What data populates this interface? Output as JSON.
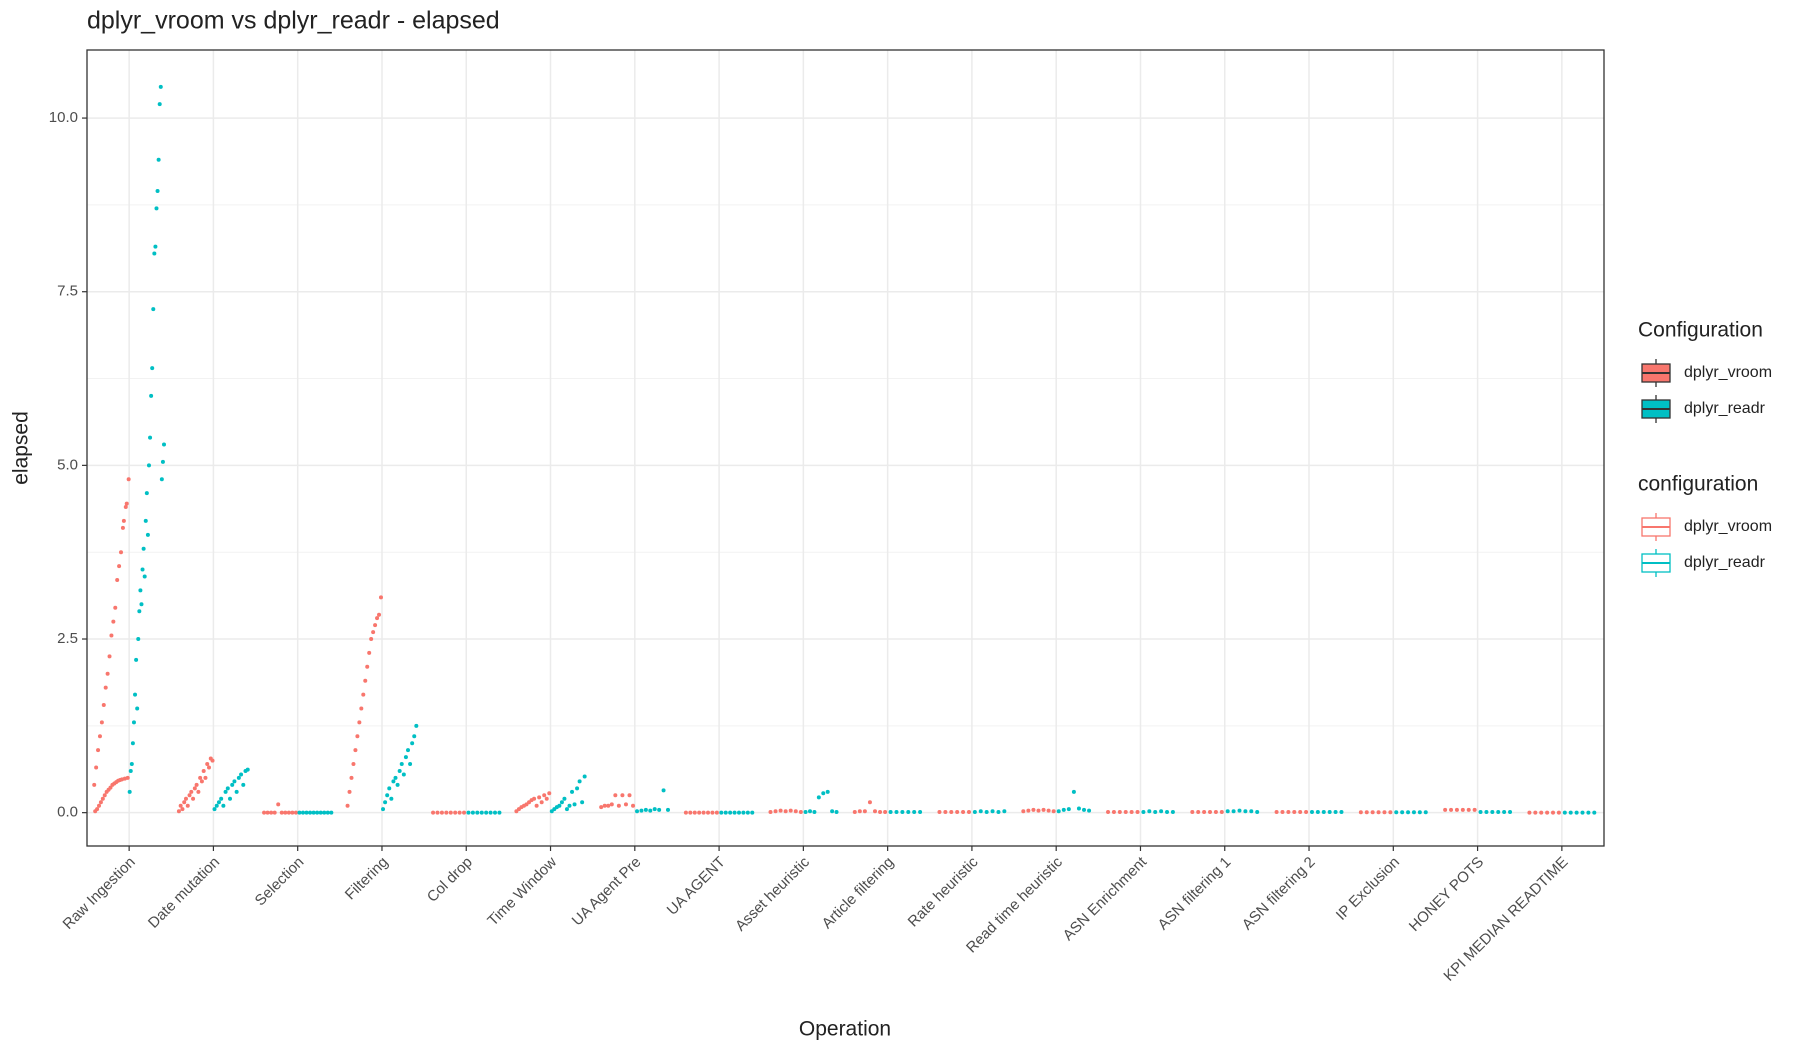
{
  "chart_data": {
    "type": "strip",
    "title": "dplyr_vroom vs dplyr_readr - elapsed",
    "x_label": "Operation",
    "y_label": "elapsed",
    "legend_titles": [
      "Configuration",
      "configuration"
    ],
    "categories": [
      "Raw Ingestion",
      "Date mutation",
      "Selection",
      "Filtering",
      "Col drop",
      "Time Window",
      "UA Agent Pre",
      "UA AGENT",
      "Asset heuristic",
      "Article filtering",
      "Rate heuristic",
      "Read time heuristic",
      "ASN Enrichment",
      "ASN filtering 1",
      "ASN filtering 2",
      "IP Exclusion",
      "HONEY POTS",
      "KPI MEDIAN READTIME"
    ],
    "series": [
      {
        "name": "dplyr_vroom",
        "color": "#F8766D",
        "values": [
          [
            0.4,
            0.02,
            0.65,
            0.05,
            0.9,
            0.1,
            1.1,
            0.15,
            1.3,
            0.2,
            1.55,
            0.25,
            1.8,
            0.3,
            2.0,
            0.33,
            2.25,
            0.36,
            2.55,
            0.4,
            2.75,
            0.42,
            2.95,
            0.44,
            3.35,
            0.46,
            3.55,
            0.47,
            3.75,
            0.48,
            4.1,
            4.2,
            0.49,
            4.4,
            4.45,
            0.5,
            4.8
          ],
          [
            0.02,
            0.1,
            0.05,
            0.15,
            0.2,
            0.1,
            0.25,
            0.3,
            0.2,
            0.35,
            0.4,
            0.3,
            0.5,
            0.45,
            0.6,
            0.5,
            0.7,
            0.65,
            0.78,
            0.75
          ],
          [
            0,
            0,
            0,
            0,
            0.12,
            0,
            0,
            0,
            0,
            0
          ],
          [
            0.1,
            0.3,
            0.5,
            0.7,
            0.9,
            1.1,
            1.3,
            1.5,
            1.7,
            1.9,
            2.1,
            2.3,
            2.5,
            2.6,
            2.7,
            2.8,
            2.85,
            3.1
          ],
          [
            0,
            0,
            0,
            0,
            0,
            0,
            0,
            0
          ],
          [
            0.02,
            0.05,
            0.08,
            0.1,
            0.12,
            0.15,
            0.18,
            0.2,
            0.1,
            0.22,
            0.15,
            0.25,
            0.2,
            0.28
          ],
          [
            0.08,
            0.1,
            0.1,
            0.12,
            0.25,
            0.1,
            0.25,
            0.12,
            0.25,
            0.1
          ],
          [
            0,
            0,
            0,
            0,
            0,
            0,
            0,
            0
          ],
          [
            0.01,
            0.02,
            0.03,
            0.02,
            0.03,
            0.02,
            0.01
          ],
          [
            0.01,
            0.02,
            0.02,
            0.15,
            0.02,
            0.01,
            0.01
          ],
          [
            0.01,
            0.01,
            0.01,
            0.01,
            0.01,
            0.01
          ],
          [
            0.02,
            0.03,
            0.04,
            0.03,
            0.04,
            0.03,
            0.02
          ],
          [
            0.01,
            0.01,
            0.01,
            0.01,
            0.01,
            0.01
          ],
          [
            0.01,
            0.01,
            0.01,
            0.01,
            0.01,
            0.01
          ],
          [
            0.01,
            0.01,
            0.01,
            0.01,
            0.01,
            0.01
          ],
          [
            0.005,
            0.005,
            0.005,
            0.005,
            0.005,
            0.005
          ],
          [
            0.04,
            0.04,
            0.04,
            0.04,
            0.04,
            0.04
          ],
          [
            0,
            0,
            0,
            0,
            0,
            0
          ]
        ]
      },
      {
        "name": "dplyr_readr",
        "color": "#00BFC4",
        "values": [
          [
            0.3,
            0.6,
            0.7,
            1.0,
            1.3,
            1.7,
            2.2,
            1.5,
            2.5,
            2.9,
            3.2,
            3.0,
            3.5,
            3.8,
            3.4,
            4.2,
            4.6,
            4.0,
            5.0,
            5.4,
            6.0,
            6.4,
            7.25,
            8.05,
            8.15,
            8.7,
            8.95,
            9.4,
            10.2,
            10.45,
            4.8,
            5.05,
            5.3
          ],
          [
            0.05,
            0.1,
            0.15,
            0.2,
            0.1,
            0.3,
            0.35,
            0.2,
            0.4,
            0.45,
            0.3,
            0.5,
            0.55,
            0.4,
            0.6,
            0.62
          ],
          [
            0,
            0,
            0,
            0,
            0,
            0,
            0,
            0,
            0,
            0
          ],
          [
            0.05,
            0.15,
            0.25,
            0.35,
            0.2,
            0.45,
            0.5,
            0.4,
            0.6,
            0.7,
            0.55,
            0.8,
            0.9,
            0.7,
            1.0,
            1.1,
            1.25
          ],
          [
            0,
            0,
            0,
            0,
            0,
            0,
            0,
            0
          ],
          [
            0.02,
            0.05,
            0.08,
            0.1,
            0.15,
            0.2,
            0.05,
            0.1,
            0.3,
            0.12,
            0.35,
            0.45,
            0.15,
            0.52
          ],
          [
            0.02,
            0.03,
            0.04,
            0.03,
            0.05,
            0.04,
            0.32,
            0.04
          ],
          [
            0,
            0,
            0,
            0,
            0,
            0,
            0,
            0
          ],
          [
            0.01,
            0.02,
            0.01,
            0.22,
            0.28,
            0.3,
            0.02,
            0.01
          ],
          [
            0.01,
            0.01,
            0.01,
            0.01,
            0.01,
            0.01
          ],
          [
            0.01,
            0.02,
            0.01,
            0.02,
            0.01,
            0.02
          ],
          [
            0.02,
            0.04,
            0.05,
            0.3,
            0.06,
            0.04,
            0.03
          ],
          [
            0.01,
            0.02,
            0.01,
            0.02,
            0.01,
            0.01
          ],
          [
            0.02,
            0.02,
            0.03,
            0.02,
            0.02,
            0.01
          ],
          [
            0.01,
            0.01,
            0.01,
            0.01,
            0.01,
            0.01
          ],
          [
            0.005,
            0.005,
            0.005,
            0.005,
            0.005,
            0.005
          ],
          [
            0.01,
            0.01,
            0.01,
            0.01,
            0.01,
            0.01
          ],
          [
            0,
            0,
            0,
            0,
            0,
            0
          ]
        ]
      }
    ],
    "ylim": [
      -0.48,
      10.98
    ],
    "yticks": [
      {
        "value": 0,
        "label": "0.0"
      },
      {
        "value": 2.5,
        "label": "2.5"
      },
      {
        "value": 5,
        "label": "5.0"
      },
      {
        "value": 7.5,
        "label": "7.5"
      },
      {
        "value": 10,
        "label": "10.0"
      }
    ],
    "grid": true
  }
}
